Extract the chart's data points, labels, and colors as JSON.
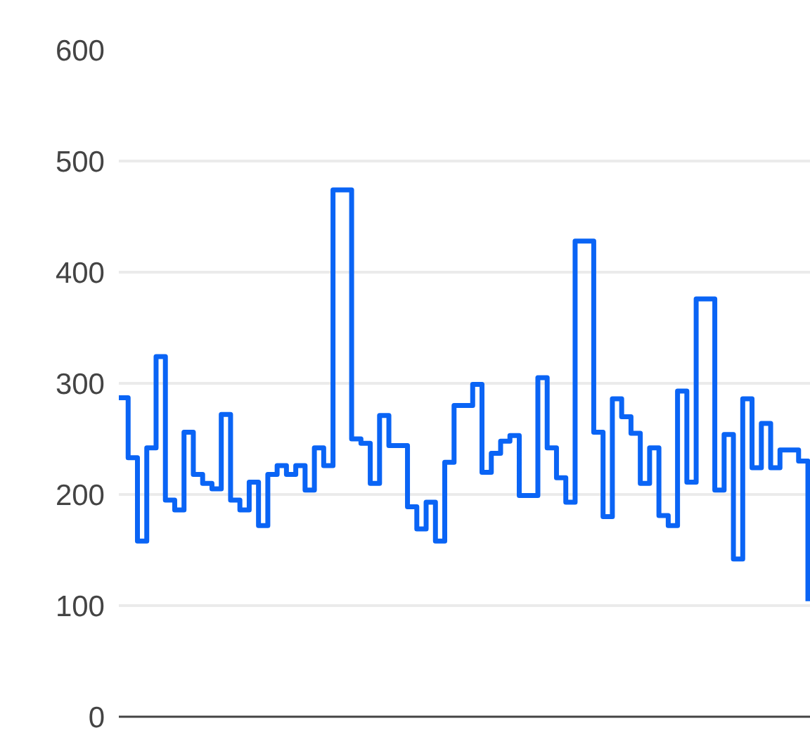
{
  "chart_data": {
    "type": "step",
    "categories": [
      null,
      null,
      null,
      null,
      null,
      null,
      null,
      null,
      null,
      null,
      null,
      null,
      null,
      null,
      null,
      null,
      null,
      null,
      null,
      null,
      null,
      null,
      null,
      null,
      null,
      null,
      null,
      null,
      null,
      null,
      null,
      null,
      null,
      null,
      null,
      null,
      null,
      null,
      null,
      null,
      null,
      null,
      null,
      null,
      null,
      null,
      null,
      null,
      null,
      null,
      null,
      null,
      null,
      null,
      null,
      null,
      null,
      null,
      null,
      null,
      null,
      null,
      null,
      null,
      null,
      null,
      null,
      null,
      null,
      null,
      null,
      null,
      null,
      null,
      null
    ],
    "series": [
      {
        "color": "#0a64f5",
        "values": [
          287,
          233,
          158,
          242,
          324,
          195,
          186,
          256,
          218,
          210,
          205,
          272,
          195,
          186,
          211,
          172,
          218,
          226,
          218,
          226,
          204,
          242,
          226,
          474,
          474,
          250,
          246,
          210,
          271,
          244,
          244,
          189,
          169,
          193,
          158,
          229,
          280,
          280,
          299,
          220,
          237,
          248,
          253,
          199,
          199,
          305,
          242,
          215,
          193,
          428,
          428,
          256,
          180,
          286,
          270,
          255,
          210,
          242,
          181,
          172,
          293,
          211,
          376,
          376,
          204,
          254,
          142,
          286,
          224,
          264,
          224,
          240,
          240,
          230,
          104
        ]
      }
    ],
    "ylim": [
      0,
      600
    ],
    "yticks": [
      0,
      100,
      200,
      300,
      400,
      500,
      600
    ],
    "grid": "y",
    "marker": "none",
    "line_style": "solid"
  }
}
